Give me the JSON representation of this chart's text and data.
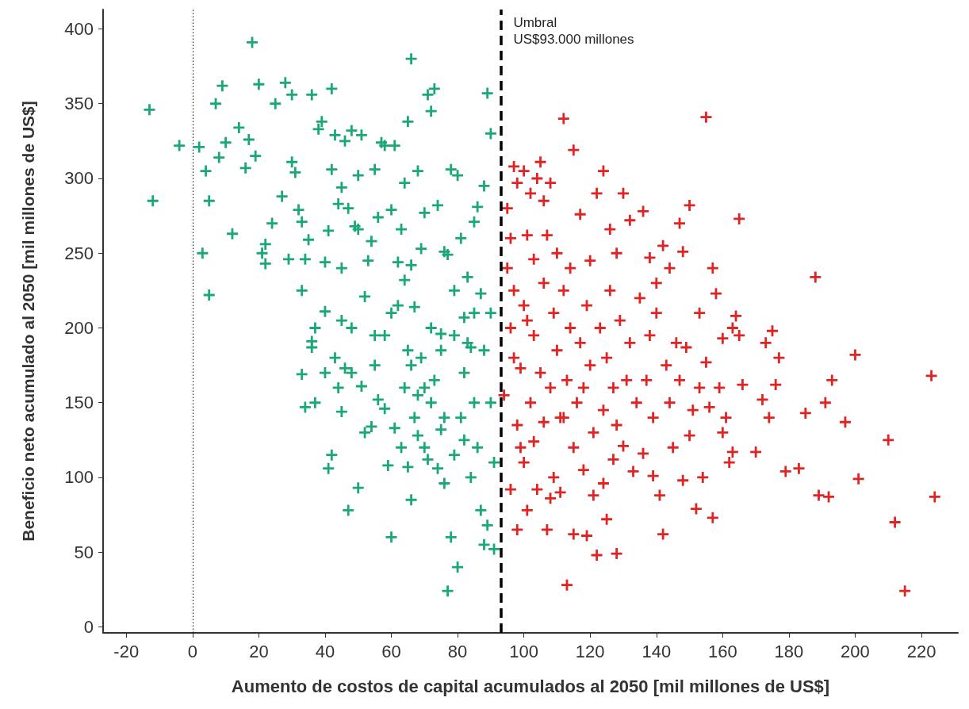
{
  "chart_data": {
    "type": "scatter",
    "xlabel": "Aumento de costos de capital acumulados al 2050 [mil millones de US$]",
    "ylabel": "Beneficio neto acumulado al 2050 [mil millones de US$]",
    "xlim": [
      -27,
      231
    ],
    "xticks": [
      -20,
      0,
      20,
      40,
      60,
      80,
      100,
      120,
      140,
      160,
      180,
      200,
      220
    ],
    "ylim": [
      -4,
      413
    ],
    "yticks": [
      0,
      50,
      100,
      150,
      200,
      250,
      300,
      350,
      400
    ],
    "grid": false,
    "marker": "cross",
    "ref_lines": [
      {
        "axis": "x",
        "value": 93,
        "label": "Umbral\nUS$93.000 millones",
        "color": "#000000",
        "line_style": "dashed"
      },
      {
        "axis": "x",
        "value": 0,
        "color": "#000000",
        "line_style": "dotted"
      }
    ],
    "series": [
      {
        "color": "#1aa874",
        "x": [
          -13,
          -12,
          -4,
          2,
          4,
          5,
          3,
          5,
          7,
          8,
          9,
          10,
          12,
          14,
          16,
          17,
          18,
          19,
          20,
          21,
          22,
          22,
          24,
          25,
          27,
          28,
          29,
          30,
          30,
          31,
          32,
          33,
          33,
          34,
          35,
          36,
          36,
          37,
          38,
          39,
          40,
          40,
          41,
          42,
          42,
          43,
          44,
          45,
          45,
          46,
          46,
          47,
          48,
          49,
          50,
          50,
          51,
          52,
          53,
          54,
          55,
          56,
          57,
          58,
          60,
          60,
          61,
          62,
          63,
          64,
          64,
          65,
          65,
          66,
          66,
          67,
          68,
          69,
          70,
          71,
          72,
          73,
          74,
          75,
          76,
          77,
          78,
          79,
          80,
          81,
          82,
          83,
          84,
          85,
          86,
          87,
          88,
          89,
          90,
          90,
          33,
          34,
          36,
          37,
          40,
          41,
          42,
          43,
          44,
          45,
          47,
          48,
          50,
          51,
          52,
          54,
          55,
          56,
          58,
          59,
          60,
          61,
          63,
          64,
          65,
          66,
          67,
          68,
          69,
          70,
          71,
          72,
          73,
          74,
          75,
          76,
          77,
          78,
          79,
          80,
          81,
          82,
          83,
          84,
          85,
          86,
          87,
          88,
          89,
          90,
          91,
          91,
          79,
          72,
          62,
          58,
          66,
          75,
          85,
          70,
          55,
          48,
          45,
          88,
          82,
          76,
          68
        ],
        "values": [
          346,
          285,
          322,
          321,
          305,
          285,
          250,
          222,
          350,
          314,
          362,
          324,
          263,
          334,
          307,
          326,
          391,
          315,
          363,
          250,
          243,
          256,
          270,
          350,
          288,
          364,
          246,
          356,
          311,
          304,
          279,
          271,
          225,
          246,
          259,
          356,
          191,
          200,
          333,
          338,
          211,
          244,
          265,
          360,
          306,
          329,
          283,
          294,
          240,
          325,
          173,
          280,
          332,
          268,
          302,
          266,
          329,
          221,
          245,
          258,
          306,
          274,
          324,
          322,
          279,
          210,
          322,
          244,
          266,
          297,
          232,
          338,
          185,
          380,
          242,
          214,
          305,
          253,
          277,
          356,
          345,
          360,
          282,
          196,
          251,
          249,
          306,
          225,
          302,
          260,
          207,
          234,
          187,
          271,
          281,
          223,
          295,
          357,
          210,
          330,
          169,
          147,
          187,
          150,
          170,
          106,
          115,
          180,
          160,
          144,
          78,
          170,
          93,
          161,
          130,
          134,
          175,
          152,
          146,
          108,
          60,
          133,
          120,
          160,
          107,
          85,
          140,
          128,
          180,
          120,
          112,
          150,
          165,
          106,
          132,
          96,
          24,
          60,
          115,
          40,
          140,
          170,
          190,
          100,
          150,
          120,
          78,
          55,
          68,
          150,
          52,
          110,
          195,
          200,
          215,
          195,
          175,
          185,
          210,
          160,
          195,
          200,
          205,
          185,
          125,
          140,
          155
        ]
      },
      {
        "color": "#e02424",
        "x": [
          95,
          96,
          97,
          98,
          100,
          101,
          102,
          103,
          104,
          105,
          106,
          107,
          108,
          110,
          112,
          114,
          115,
          117,
          120,
          122,
          124,
          126,
          128,
          130,
          132,
          136,
          138,
          140,
          142,
          144,
          147,
          148,
          150,
          153,
          155,
          157,
          158,
          165,
          163,
          160,
          175,
          177,
          188,
          200,
          193,
          185,
          197,
          191,
          210,
          223,
          179,
          183,
          189,
          192,
          201,
          212,
          224,
          215,
          113,
          128,
          122,
          125,
          115,
          119,
          107,
          98,
          101,
          104,
          108,
          111,
          96,
          100,
          103,
          106,
          109,
          112,
          115,
          118,
          121,
          124,
          127,
          130,
          133,
          136,
          139,
          141,
          142,
          145,
          148,
          150,
          152,
          154,
          156,
          157,
          160,
          162,
          163,
          166,
          170,
          172,
          174,
          176,
          94,
          96,
          97,
          98,
          99,
          100,
          102,
          103,
          105,
          106,
          108,
          109,
          110,
          111,
          112,
          113,
          114,
          116,
          117,
          118,
          119,
          120,
          121,
          123,
          124,
          125,
          126,
          127,
          128,
          129,
          131,
          132,
          134,
          135,
          137,
          138,
          139,
          140,
          143,
          144,
          146,
          147,
          149,
          151,
          153,
          155,
          159,
          161,
          164,
          165,
          173,
          95,
          97,
          99,
          101
        ],
        "values": [
          280,
          260,
          308,
          297,
          305,
          262,
          290,
          246,
          300,
          311,
          285,
          262,
          297,
          250,
          340,
          240,
          319,
          276,
          245,
          290,
          305,
          266,
          250,
          290,
          272,
          278,
          247,
          230,
          255,
          240,
          270,
          251,
          282,
          210,
          341,
          240,
          223,
          273,
          200,
          193,
          198,
          180,
          234,
          182,
          165,
          143,
          137,
          150,
          125,
          168,
          104,
          106,
          88,
          87,
          99,
          70,
          87,
          24,
          28,
          49,
          48,
          72,
          62,
          61,
          65,
          65,
          78,
          92,
          86,
          90,
          92,
          110,
          124,
          137,
          100,
          140,
          120,
          105,
          88,
          96,
          112,
          121,
          104,
          116,
          101,
          88,
          62,
          120,
          98,
          128,
          79,
          100,
          147,
          73,
          130,
          110,
          117,
          162,
          117,
          152,
          140,
          162,
          155,
          200,
          225,
          135,
          173,
          215,
          150,
          195,
          170,
          230,
          160,
          210,
          185,
          140,
          225,
          165,
          200,
          150,
          190,
          160,
          215,
          175,
          130,
          200,
          145,
          180,
          225,
          160,
          135,
          205,
          165,
          190,
          150,
          220,
          165,
          195,
          140,
          210,
          175,
          150,
          190,
          165,
          187,
          145,
          160,
          177,
          160,
          140,
          208,
          195,
          190,
          240,
          180,
          120,
          205
        ]
      }
    ]
  }
}
